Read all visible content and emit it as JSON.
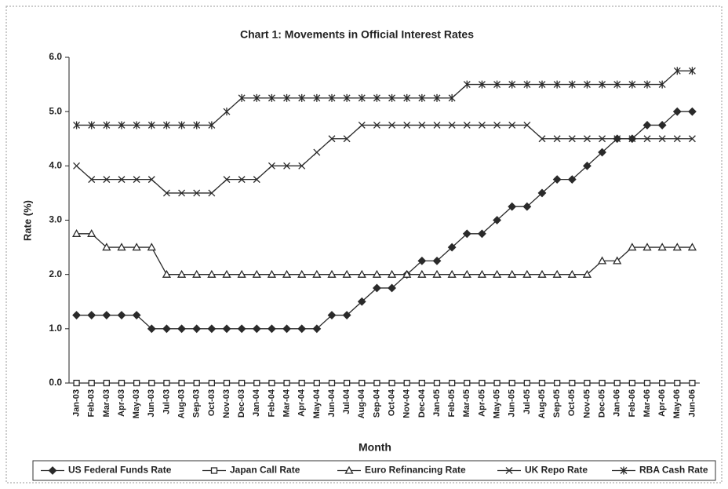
{
  "chart_data": {
    "type": "line",
    "title": "Chart 1: Movements in Official Interest Rates",
    "x_label": "Month",
    "y_label": "Rate (%)",
    "categories": [
      "Jan-03",
      "Feb-03",
      "Mar-03",
      "Apr-03",
      "May-03",
      "Jun-03",
      "Jul-03",
      "Aug-03",
      "Sep-03",
      "Oct-03",
      "Nov-03",
      "Dec-03",
      "Jan-04",
      "Feb-04",
      "Mar-04",
      "Apr-04",
      "May-04",
      "Jun-04",
      "Jul-04",
      "Aug-04",
      "Sep-04",
      "Oct-04",
      "Nov-04",
      "Dec-04",
      "Jan-05",
      "Feb-05",
      "Mar-05",
      "Apr-05",
      "May-05",
      "Jun-05",
      "Jul-05",
      "Aug-05",
      "Sep-05",
      "Oct-05",
      "Nov-05",
      "Dec-05",
      "Jan-06",
      "Feb-06",
      "Mar-06",
      "Apr-06",
      "May-06",
      "Jun-06"
    ],
    "series": [
      {
        "name": "US Federal Funds Rate",
        "color": "#2a2a2a",
        "marker": "diamond",
        "values": [
          1.25,
          1.25,
          1.25,
          1.25,
          1.25,
          1,
          1,
          1,
          1,
          1,
          1,
          1,
          1,
          1,
          1,
          1,
          1,
          1.25,
          1.25,
          1.5,
          1.75,
          1.75,
          2,
          2.25,
          2.25,
          2.5,
          2.75,
          2.75,
          3,
          3.25,
          3.25,
          3.5,
          3.75,
          3.75,
          4,
          4.25,
          4.5,
          4.5,
          4.75,
          4.75,
          5,
          5
        ]
      },
      {
        "name": "Japan Call Rate",
        "color": "#2a2a2a",
        "marker": "square",
        "values": [
          0,
          0,
          0,
          0,
          0,
          0,
          0,
          0,
          0,
          0,
          0,
          0,
          0,
          0,
          0,
          0,
          0,
          0,
          0,
          0,
          0,
          0,
          0,
          0,
          0,
          0,
          0,
          0,
          0,
          0,
          0,
          0,
          0,
          0,
          0,
          0,
          0,
          0,
          0,
          0,
          0,
          0
        ]
      },
      {
        "name": "Euro Refinancing Rate",
        "color": "#2a2a2a",
        "marker": "triangle",
        "values": [
          2.75,
          2.75,
          2.5,
          2.5,
          2.5,
          2.5,
          2,
          2,
          2,
          2,
          2,
          2,
          2,
          2,
          2,
          2,
          2,
          2,
          2,
          2,
          2,
          2,
          2,
          2,
          2,
          2,
          2,
          2,
          2,
          2,
          2,
          2,
          2,
          2,
          2,
          2.25,
          2.25,
          2.5,
          2.5,
          2.5,
          2.5,
          2.5
        ]
      },
      {
        "name": "UK Repo Rate",
        "color": "#2a2a2a",
        "marker": "x",
        "values": [
          4,
          3.75,
          3.75,
          3.75,
          3.75,
          3.75,
          3.5,
          3.5,
          3.5,
          3.5,
          3.75,
          3.75,
          3.75,
          4,
          4,
          4,
          4.25,
          4.5,
          4.5,
          4.75,
          4.75,
          4.75,
          4.75,
          4.75,
          4.75,
          4.75,
          4.75,
          4.75,
          4.75,
          4.75,
          4.75,
          4.5,
          4.5,
          4.5,
          4.5,
          4.5,
          4.5,
          4.5,
          4.5,
          4.5,
          4.5,
          4.5
        ]
      },
      {
        "name": "RBA Cash Rate",
        "color": "#2a2a2a",
        "marker": "star",
        "values": [
          4.75,
          4.75,
          4.75,
          4.75,
          4.75,
          4.75,
          4.75,
          4.75,
          4.75,
          4.75,
          5,
          5.25,
          5.25,
          5.25,
          5.25,
          5.25,
          5.25,
          5.25,
          5.25,
          5.25,
          5.25,
          5.25,
          5.25,
          5.25,
          5.25,
          5.25,
          5.5,
          5.5,
          5.5,
          5.5,
          5.5,
          5.5,
          5.5,
          5.5,
          5.5,
          5.5,
          5.5,
          5.5,
          5.5,
          5.5,
          5.75,
          5.75
        ]
      }
    ],
    "ylim": [
      0,
      6
    ],
    "yticks": [
      {
        "value": 0,
        "label": "0.0"
      },
      {
        "value": 1,
        "label": "1.0"
      },
      {
        "value": 2,
        "label": "2.0"
      },
      {
        "value": 3,
        "label": "3.0"
      },
      {
        "value": 4,
        "label": "4.0"
      },
      {
        "value": 5,
        "label": "5.0"
      },
      {
        "value": 6,
        "label": "6.0"
      }
    ],
    "grid": false,
    "legend": "bottom"
  }
}
